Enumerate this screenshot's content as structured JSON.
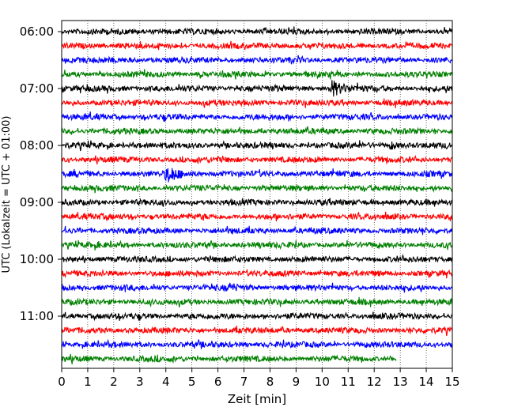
{
  "chart_data": {
    "type": "line",
    "xlabel": "Zeit  [min]",
    "ylabel": "UTC (Lokalzeit = UTC + 01:00)",
    "xlim": [
      0,
      15
    ],
    "x_ticks": [
      0,
      1,
      2,
      3,
      4,
      5,
      6,
      7,
      8,
      9,
      10,
      11,
      12,
      13,
      14,
      15
    ],
    "y_tick_labels": [
      "06:00",
      "07:00",
      "08:00",
      "09:00",
      "10:00",
      "11:00"
    ],
    "y_tick_start_times": [
      "06:00",
      "07:00",
      "08:00",
      "09:00",
      "10:00",
      "11:00"
    ],
    "vertical_grid": "dotted",
    "trace_interval_minutes": 15,
    "trace_start_times": [
      "06:00",
      "06:15",
      "06:30",
      "06:45",
      "07:00",
      "07:15",
      "07:30",
      "07:45",
      "08:00",
      "08:15",
      "08:30",
      "08:45",
      "09:00",
      "09:15",
      "09:30",
      "09:45",
      "10:00",
      "10:15",
      "10:30",
      "10:45",
      "11:00",
      "11:15",
      "11:30",
      "11:45"
    ],
    "trace_colors": [
      "#000000",
      "#ff0000",
      "#0000ff",
      "#008000"
    ],
    "last_trace_end_minute": 12.85,
    "events": [
      {
        "trace_start": "07:00",
        "minute": 10.4,
        "amplitude": "large"
      },
      {
        "trace_start": "08:30",
        "minute": 4.1,
        "amplitude": "large"
      },
      {
        "trace_start": "08:00",
        "minute": 12.7,
        "amplitude": "small"
      },
      {
        "trace_start": "10:30",
        "minute": 6.5,
        "amplitude": "small"
      }
    ]
  }
}
